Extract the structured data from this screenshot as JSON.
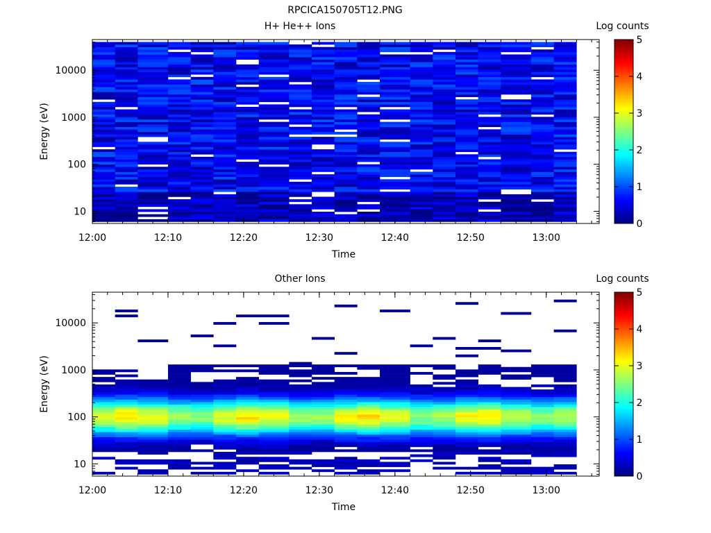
{
  "figure": {
    "title": "RPCICA150705T12.PNG"
  },
  "chart_data": [
    {
      "type": "heatmap",
      "title": "H+ He++ Ions",
      "xlabel": "Time",
      "ylabel": "Energy (eV)",
      "x_ticks": [
        "12:00",
        "12:10",
        "12:20",
        "12:30",
        "12:40",
        "12:50",
        "13:00"
      ],
      "xlim": [
        "12:00",
        "13:07"
      ],
      "y_scale": "log",
      "ylim": [
        5.5,
        45000
      ],
      "y_ticks": [
        "10",
        "100",
        "1000",
        "10000"
      ],
      "colorbar": {
        "label": "Log counts",
        "range": [
          0,
          5
        ],
        "ticks": [
          "0",
          "1",
          "2",
          "3",
          "4",
          "5"
        ]
      },
      "time_bins": [
        "12:00",
        "12:03",
        "12:06",
        "12:10",
        "12:13",
        "12:16",
        "12:19",
        "12:22",
        "12:26",
        "12:29",
        "12:32",
        "12:35",
        "12:38",
        "12:42",
        "12:45",
        "12:48",
        "12:51",
        "12:54",
        "12:58",
        "13:01"
      ],
      "energy_bins_eV": {
        "count": 72,
        "min": 6,
        "max": 40000,
        "spacing": "log"
      },
      "pattern": "blue_uniform",
      "mean_log_counts": 0.6,
      "grid": false
    },
    {
      "type": "heatmap",
      "title": "Other Ions",
      "xlabel": "Time",
      "ylabel": "Energy (eV)",
      "x_ticks": [
        "12:00",
        "12:10",
        "12:20",
        "12:30",
        "12:40",
        "12:50",
        "13:00"
      ],
      "xlim": [
        "12:00",
        "13:07"
      ],
      "y_scale": "log",
      "ylim": [
        5.5,
        45000
      ],
      "y_ticks": [
        "10",
        "100",
        "1000",
        "10000"
      ],
      "colorbar": {
        "label": "Log counts",
        "range": [
          0,
          5
        ],
        "ticks": [
          "0",
          "1",
          "2",
          "3",
          "4",
          "5"
        ]
      },
      "time_bins": [
        "12:00",
        "12:03",
        "12:06",
        "12:10",
        "12:13",
        "12:16",
        "12:19",
        "12:22",
        "12:26",
        "12:29",
        "12:32",
        "12:35",
        "12:38",
        "12:42",
        "12:45",
        "12:48",
        "12:51",
        "12:54",
        "12:58",
        "13:01"
      ],
      "energy_bins_eV": {
        "count": 72,
        "min": 6,
        "max": 40000,
        "spacing": "log"
      },
      "pattern": "peak_near_100eV",
      "peak_log_counts": 2.9,
      "peak_energy_eV": 100,
      "grid": false
    }
  ],
  "colors": {
    "frame": "#000000",
    "background": "#ffffff",
    "empty_bin": "#ffffff"
  }
}
